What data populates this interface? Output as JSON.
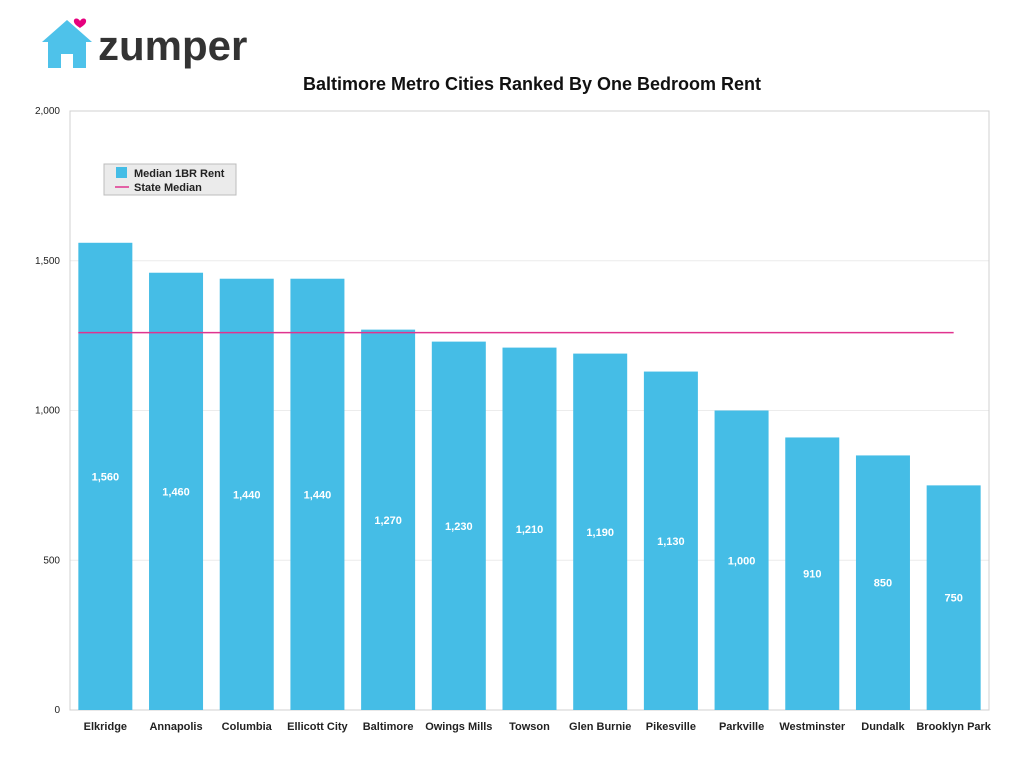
{
  "brand": {
    "name": "zumper",
    "colors": {
      "house": "#4ec2ea",
      "heart": "#e6007e",
      "text": "#333333"
    }
  },
  "chart_data": {
    "type": "bar",
    "title": "Baltimore Metro Cities Ranked By One Bedroom Rent",
    "categories": [
      "Elkridge",
      "Annapolis",
      "Columbia",
      "Ellicott City",
      "Baltimore",
      "Owings Mills",
      "Towson",
      "Glen Burnie",
      "Pikesville",
      "Parkville",
      "Westminster",
      "Dundalk",
      "Brooklyn Park"
    ],
    "series": [
      {
        "name": "Median 1BR Rent",
        "color": "#45bde6",
        "values": [
          1560,
          1460,
          1440,
          1440,
          1270,
          1230,
          1210,
          1190,
          1130,
          1000,
          910,
          850,
          750
        ]
      }
    ],
    "reference_line": {
      "name": "State Median",
      "value": 1260,
      "color": "#e0338f"
    },
    "data_labels": [
      "1,560",
      "1,460",
      "1,440",
      "1,440",
      "1,270",
      "1,230",
      "1,210",
      "1,190",
      "1,130",
      "1,000",
      "910",
      "850",
      "750"
    ],
    "y_ticks": [
      0,
      500,
      1000,
      1500,
      2000
    ],
    "y_tick_labels": [
      "0",
      "500",
      "1,000",
      "1,500",
      "2,000"
    ],
    "ylim": [
      0,
      2000
    ],
    "xlabel": "",
    "ylabel": "",
    "grid": true,
    "legend_position": "top-left"
  }
}
